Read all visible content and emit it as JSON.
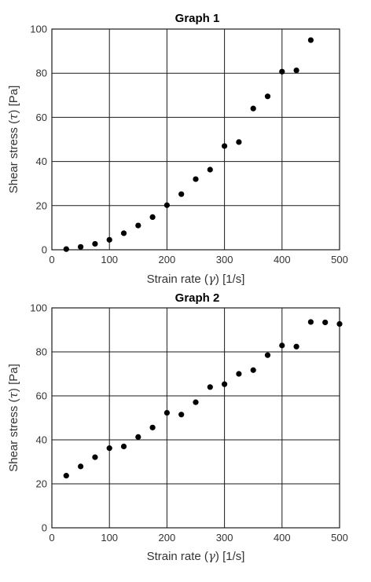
{
  "chart_data": [
    {
      "type": "scatter",
      "title": "Graph 1",
      "xlabel": "Strain rate",
      "xlabel_symbol": "γ",
      "xlabel_unit": "[1/s]",
      "ylabel": "Shear stress",
      "ylabel_symbol": "τ",
      "ylabel_unit": "[Pa]",
      "xlim": [
        0,
        500
      ],
      "ylim": [
        0,
        100
      ],
      "xticks": [
        0,
        100,
        200,
        300,
        400,
        500
      ],
      "yticks": [
        0,
        20,
        40,
        60,
        80,
        100
      ],
      "grid": true,
      "series": [
        {
          "x": [
            25,
            50,
            75,
            100,
            125,
            150,
            175,
            200,
            225,
            250,
            275,
            300,
            325,
            350,
            375,
            400,
            425,
            450
          ],
          "y": [
            0.3,
            1.3,
            2.7,
            4.5,
            7.5,
            11,
            14.8,
            20.2,
            25.2,
            32,
            36.3,
            47,
            48.8,
            64,
            69.5,
            80.7,
            81.3,
            95
          ]
        }
      ]
    },
    {
      "type": "scatter",
      "title": "Graph 2",
      "xlabel": "Strain rate",
      "xlabel_symbol": "γ",
      "xlabel_unit": "[1/s]",
      "ylabel": "Shear stress",
      "ylabel_symbol": "τ",
      "ylabel_unit": "[Pa]",
      "xlim": [
        0,
        500
      ],
      "ylim": [
        0,
        100
      ],
      "xticks": [
        0,
        100,
        200,
        300,
        400,
        500
      ],
      "yticks": [
        0,
        20,
        40,
        60,
        80,
        100
      ],
      "grid": true,
      "series": [
        {
          "x": [
            25,
            50,
            75,
            100,
            125,
            150,
            175,
            200,
            225,
            250,
            275,
            300,
            325,
            350,
            375,
            400,
            425,
            450,
            475,
            500
          ],
          "y": [
            23.7,
            27.9,
            32.1,
            36.2,
            37,
            41.3,
            45.6,
            52.3,
            51.5,
            57.1,
            64,
            65.3,
            70,
            71.7,
            78.5,
            82.9,
            82.4,
            93.6,
            93.4,
            92.7
          ]
        }
      ]
    }
  ]
}
